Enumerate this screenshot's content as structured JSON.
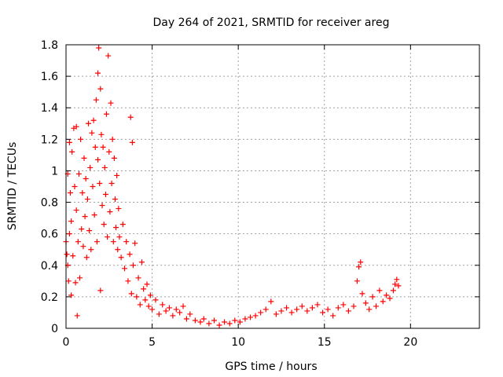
{
  "chart_data": {
    "type": "scatter",
    "title": "Day 264 of 2021, SRMTID for receiver areg",
    "xlabel": "GPS time / hours",
    "ylabel": "SRMTID / TECUs",
    "xlim": [
      0,
      24
    ],
    "ylim": [
      0,
      1.8
    ],
    "xticks": [
      0,
      5,
      10,
      15,
      20
    ],
    "yticks": [
      0,
      0.2,
      0.4,
      0.6,
      0.8,
      1,
      1.2,
      1.4,
      1.6,
      1.8
    ],
    "xtick_labels": [
      "0",
      "5",
      "10",
      "15",
      "20"
    ],
    "ytick_labels": [
      "0",
      "0.2",
      "0.4",
      "0.6",
      "0.8",
      "1",
      "1.2",
      "1.4",
      "1.6",
      "1.8"
    ],
    "grid": true,
    "marker": "+",
    "color": "#ff0000",
    "series": [
      {
        "name": "SRMTID",
        "points": [
          [
            0.0,
            0.55
          ],
          [
            0.05,
            0.47
          ],
          [
            0.1,
            0.98
          ],
          [
            0.1,
            0.4
          ],
          [
            0.15,
            0.3
          ],
          [
            0.2,
            1.18
          ],
          [
            0.2,
            0.6
          ],
          [
            0.25,
            0.86
          ],
          [
            0.3,
            0.21
          ],
          [
            0.3,
            0.68
          ],
          [
            0.35,
            1.12
          ],
          [
            0.4,
            0.46
          ],
          [
            0.45,
            1.27
          ],
          [
            0.5,
            0.9
          ],
          [
            0.55,
            0.29
          ],
          [
            0.6,
            1.28
          ],
          [
            0.6,
            0.75
          ],
          [
            0.65,
            0.08
          ],
          [
            0.7,
            0.55
          ],
          [
            0.75,
            0.98
          ],
          [
            0.8,
            0.32
          ],
          [
            0.85,
            1.2
          ],
          [
            0.9,
            0.63
          ],
          [
            0.95,
            0.86
          ],
          [
            1.0,
            0.52
          ],
          [
            1.05,
            1.08
          ],
          [
            1.1,
            0.71
          ],
          [
            1.15,
            0.95
          ],
          [
            1.2,
            0.45
          ],
          [
            1.25,
            0.82
          ],
          [
            1.3,
            1.3
          ],
          [
            1.35,
            0.62
          ],
          [
            1.4,
            1.02
          ],
          [
            1.45,
            0.5
          ],
          [
            1.5,
            1.24
          ],
          [
            1.55,
            0.9
          ],
          [
            1.6,
            1.32
          ],
          [
            1.65,
            0.72
          ],
          [
            1.7,
            1.15
          ],
          [
            1.75,
            1.45
          ],
          [
            1.8,
            0.55
          ],
          [
            1.85,
            1.62
          ],
          [
            1.85,
            1.07
          ],
          [
            1.9,
            1.78
          ],
          [
            1.95,
            0.92
          ],
          [
            2.0,
            1.52
          ],
          [
            2.0,
            0.24
          ],
          [
            2.05,
            1.23
          ],
          [
            2.1,
            0.78
          ],
          [
            2.15,
            1.15
          ],
          [
            2.2,
            0.66
          ],
          [
            2.25,
            1.02
          ],
          [
            2.3,
            0.85
          ],
          [
            2.35,
            1.36
          ],
          [
            2.4,
            0.58
          ],
          [
            2.45,
            1.73
          ],
          [
            2.5,
            1.12
          ],
          [
            2.55,
            0.74
          ],
          [
            2.6,
            1.43
          ],
          [
            2.65,
            0.92
          ],
          [
            2.7,
            1.2
          ],
          [
            2.75,
            0.55
          ],
          [
            2.8,
            1.08
          ],
          [
            2.85,
            0.82
          ],
          [
            2.9,
            0.64
          ],
          [
            2.95,
            0.97
          ],
          [
            3.0,
            0.5
          ],
          [
            3.05,
            0.76
          ],
          [
            3.1,
            0.58
          ],
          [
            3.2,
            0.45
          ],
          [
            3.3,
            0.66
          ],
          [
            3.4,
            0.38
          ],
          [
            3.5,
            0.55
          ],
          [
            3.6,
            0.3
          ],
          [
            3.7,
            0.47
          ],
          [
            3.75,
            1.34
          ],
          [
            3.8,
            0.22
          ],
          [
            3.85,
            1.18
          ],
          [
            3.9,
            0.4
          ],
          [
            4.0,
            0.54
          ],
          [
            4.1,
            0.2
          ],
          [
            4.2,
            0.32
          ],
          [
            4.3,
            0.15
          ],
          [
            4.4,
            0.42
          ],
          [
            4.5,
            0.25
          ],
          [
            4.6,
            0.18
          ],
          [
            4.7,
            0.28
          ],
          [
            4.8,
            0.14
          ],
          [
            4.9,
            0.21
          ],
          [
            5.0,
            0.12
          ],
          [
            5.2,
            0.18
          ],
          [
            5.4,
            0.09
          ],
          [
            5.6,
            0.15
          ],
          [
            5.8,
            0.11
          ],
          [
            6.0,
            0.13
          ],
          [
            6.2,
            0.08
          ],
          [
            6.4,
            0.12
          ],
          [
            6.6,
            0.1
          ],
          [
            6.8,
            0.14
          ],
          [
            7.0,
            0.06
          ],
          [
            7.2,
            0.09
          ],
          [
            7.5,
            0.05
          ],
          [
            7.8,
            0.04
          ],
          [
            8.0,
            0.06
          ],
          [
            8.3,
            0.03
          ],
          [
            8.6,
            0.05
          ],
          [
            8.9,
            0.02
          ],
          [
            9.2,
            0.04
          ],
          [
            9.5,
            0.03
          ],
          [
            9.8,
            0.05
          ],
          [
            10.1,
            0.04
          ],
          [
            10.4,
            0.06
          ],
          [
            10.7,
            0.07
          ],
          [
            11.0,
            0.08
          ],
          [
            11.3,
            0.1
          ],
          [
            11.6,
            0.12
          ],
          [
            11.9,
            0.17
          ],
          [
            12.2,
            0.09
          ],
          [
            12.5,
            0.11
          ],
          [
            12.8,
            0.13
          ],
          [
            13.1,
            0.1
          ],
          [
            13.4,
            0.12
          ],
          [
            13.7,
            0.14
          ],
          [
            14.0,
            0.11
          ],
          [
            14.3,
            0.13
          ],
          [
            14.6,
            0.15
          ],
          [
            14.9,
            0.1
          ],
          [
            15.2,
            0.12
          ],
          [
            15.5,
            0.08
          ],
          [
            15.8,
            0.13
          ],
          [
            16.1,
            0.15
          ],
          [
            16.4,
            0.11
          ],
          [
            16.7,
            0.14
          ],
          [
            16.9,
            0.3
          ],
          [
            17.0,
            0.39
          ],
          [
            17.1,
            0.42
          ],
          [
            17.2,
            0.22
          ],
          [
            17.4,
            0.16
          ],
          [
            17.6,
            0.12
          ],
          [
            17.8,
            0.2
          ],
          [
            18.0,
            0.14
          ],
          [
            18.2,
            0.24
          ],
          [
            18.4,
            0.17
          ],
          [
            18.6,
            0.21
          ],
          [
            18.8,
            0.19
          ],
          [
            19.0,
            0.24
          ],
          [
            19.1,
            0.28
          ],
          [
            19.2,
            0.31
          ],
          [
            19.3,
            0.27
          ]
        ]
      }
    ]
  }
}
